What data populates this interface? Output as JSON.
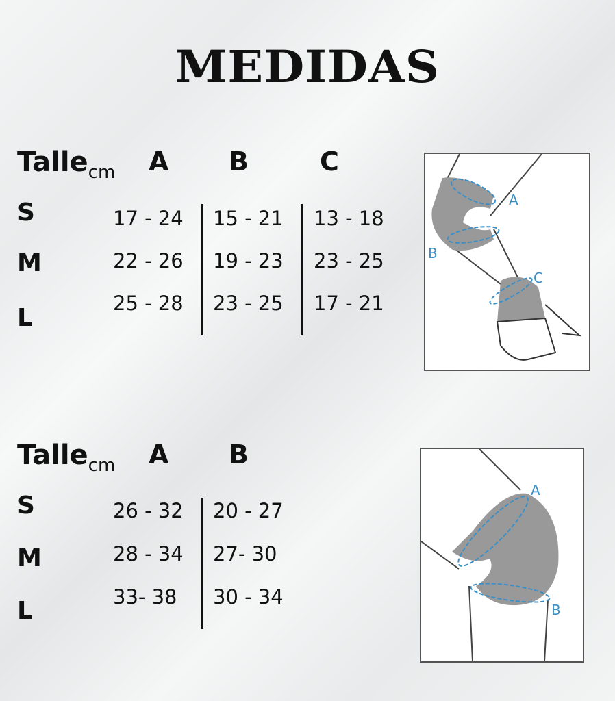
{
  "title": "MEDIDAS",
  "table1": {
    "label": "Talle",
    "unit": "cm",
    "columns": [
      "A",
      "B",
      "C"
    ],
    "rows": [
      {
        "size": "S",
        "values": [
          "17 - 24",
          "15 - 21",
          "13 - 18"
        ]
      },
      {
        "size": "M",
        "values": [
          "22 - 26",
          "19 - 23",
          "23 - 25"
        ]
      },
      {
        "size": "L",
        "values": [
          "25 - 28",
          "23 - 25",
          "17 - 21"
        ]
      }
    ],
    "diagram_labels": [
      "A",
      "B",
      "C"
    ]
  },
  "table2": {
    "label": "Talle",
    "unit": "cm",
    "columns": [
      "A",
      "B"
    ],
    "rows": [
      {
        "size": "S",
        "values": [
          "26 - 32",
          "20 - 27"
        ]
      },
      {
        "size": "M",
        "values": [
          "28 - 34",
          "27- 30"
        ]
      },
      {
        "size": "L",
        "values": [
          "33- 38",
          "30 - 34"
        ]
      }
    ],
    "diagram_labels": [
      "A",
      "B"
    ]
  },
  "colors": {
    "text": "#111111",
    "measure": "#3a8fc7",
    "pad": "#9a9a9a"
  }
}
